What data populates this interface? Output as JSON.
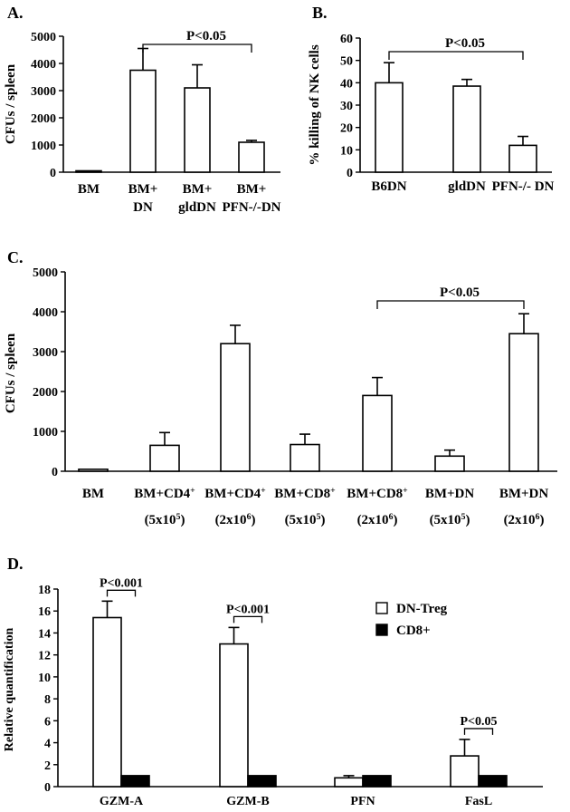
{
  "chart_data": [
    {
      "panel": "A.",
      "type": "bar",
      "ylabel": "CFUs / spleen",
      "ylim": [
        0,
        5000
      ],
      "yticks": [
        "0",
        "1000",
        "2000",
        "3000",
        "4000",
        "5000"
      ],
      "categories": [
        [
          "BM"
        ],
        [
          "BM+",
          "DN"
        ],
        [
          "BM+",
          "gldDN"
        ],
        [
          "BM+",
          "PFN-/-DN"
        ]
      ],
      "values": [
        50,
        3750,
        3100,
        1100
      ],
      "errors": [
        0,
        800,
        850,
        70
      ],
      "annotations": [
        {
          "text": "P<0.05",
          "from": 1,
          "to": 3
        }
      ]
    },
    {
      "panel": "B.",
      "type": "bar",
      "ylabel": "% killing of NK cells",
      "ylim": [
        0,
        60
      ],
      "yticks": [
        "0",
        "10",
        "20",
        "30",
        "40",
        "50",
        "60"
      ],
      "categories": [
        [
          "B6DN"
        ],
        [
          "gldDN"
        ],
        [
          "PFN-/- DN"
        ]
      ],
      "values": [
        40,
        38.5,
        12
      ],
      "errors": [
        9,
        3,
        4
      ],
      "annotations": [
        {
          "text": "P<0.05",
          "from": 0,
          "to": 2
        }
      ]
    },
    {
      "panel": "C.",
      "type": "bar",
      "ylabel": "CFUs / spleen",
      "ylim": [
        0,
        5000
      ],
      "yticks": [
        "0",
        "1000",
        "2000",
        "3000",
        "4000",
        "5000"
      ],
      "categories": [
        [
          "BM"
        ],
        [
          "BM+CD4+",
          "(5x105)"
        ],
        [
          "BM+CD4+",
          "(2x106)"
        ],
        [
          "BM+CD8+",
          "(5x105)"
        ],
        [
          "BM+CD8+",
          "(2x106)"
        ],
        [
          "BM+DN",
          "(5x105)"
        ],
        [
          "BM+DN",
          "(2x106)"
        ]
      ],
      "values": [
        50,
        650,
        3200,
        670,
        1900,
        380,
        3450
      ],
      "errors": [
        0,
        320,
        460,
        260,
        450,
        150,
        500
      ],
      "annotations": [
        {
          "text": "P<0.05",
          "from": 4,
          "to": 6
        }
      ]
    },
    {
      "panel": "D.",
      "type": "bar",
      "ylabel": "Relative quantification",
      "ylim": [
        0,
        18
      ],
      "yticks": [
        "0",
        "2",
        "4",
        "6",
        "8",
        "10",
        "12",
        "14",
        "16",
        "18"
      ],
      "categories": [
        "GZM-A",
        "GZM-B",
        "PFN",
        "FasL"
      ],
      "series": [
        {
          "name": "DN-Treg",
          "values": [
            15.4,
            13.0,
            0.8,
            2.8
          ],
          "errors": [
            1.5,
            1.5,
            0.2,
            1.5
          ],
          "color": "#ffffff"
        },
        {
          "name": "CD8+",
          "values": [
            1.0,
            1.0,
            1.0,
            1.0
          ],
          "errors": [
            0,
            0,
            0,
            0
          ],
          "color": "#000000"
        }
      ],
      "legend": "top-right",
      "annotations": [
        {
          "text": "P<0.001",
          "group": 0
        },
        {
          "text": "P<0.001",
          "group": 1
        },
        {
          "text": "P<0.05",
          "group": 3
        }
      ]
    }
  ]
}
